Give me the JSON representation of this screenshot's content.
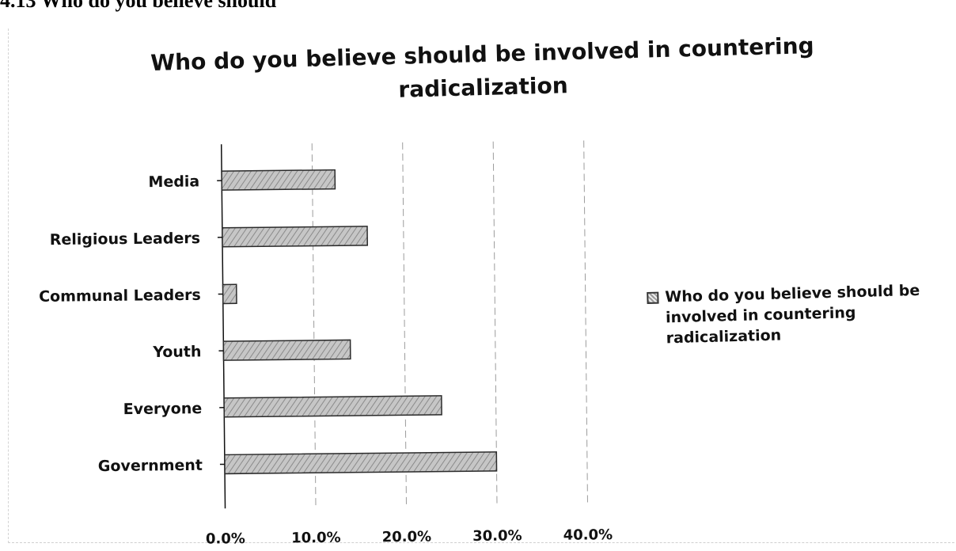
{
  "page": {
    "heading": "4.13 Who do you believe should"
  },
  "chart_data": {
    "type": "bar",
    "orientation": "horizontal",
    "title": "Who do you believe should be involved in countering radicalization",
    "categories": [
      "Media",
      "Religious Leaders",
      "Communal Leaders",
      "Youth",
      "Everyone",
      "Government"
    ],
    "series": [
      {
        "name": "Who do you believe should be involved in countering radicalization",
        "values": [
          12.5,
          16.0,
          1.5,
          14.0,
          24.0,
          30.0
        ]
      }
    ],
    "xlim": [
      0,
      40
    ],
    "x_ticks": [
      "0.0%",
      "10.0%",
      "20.0%",
      "30.0%",
      "40.0%"
    ],
    "grid": true,
    "legend_position": "right",
    "colors": {
      "bar_fill": "#bdbdbd",
      "bar_stroke": "#2b2b2b",
      "grid": "#9c9c9c",
      "axis": "#111111"
    }
  }
}
